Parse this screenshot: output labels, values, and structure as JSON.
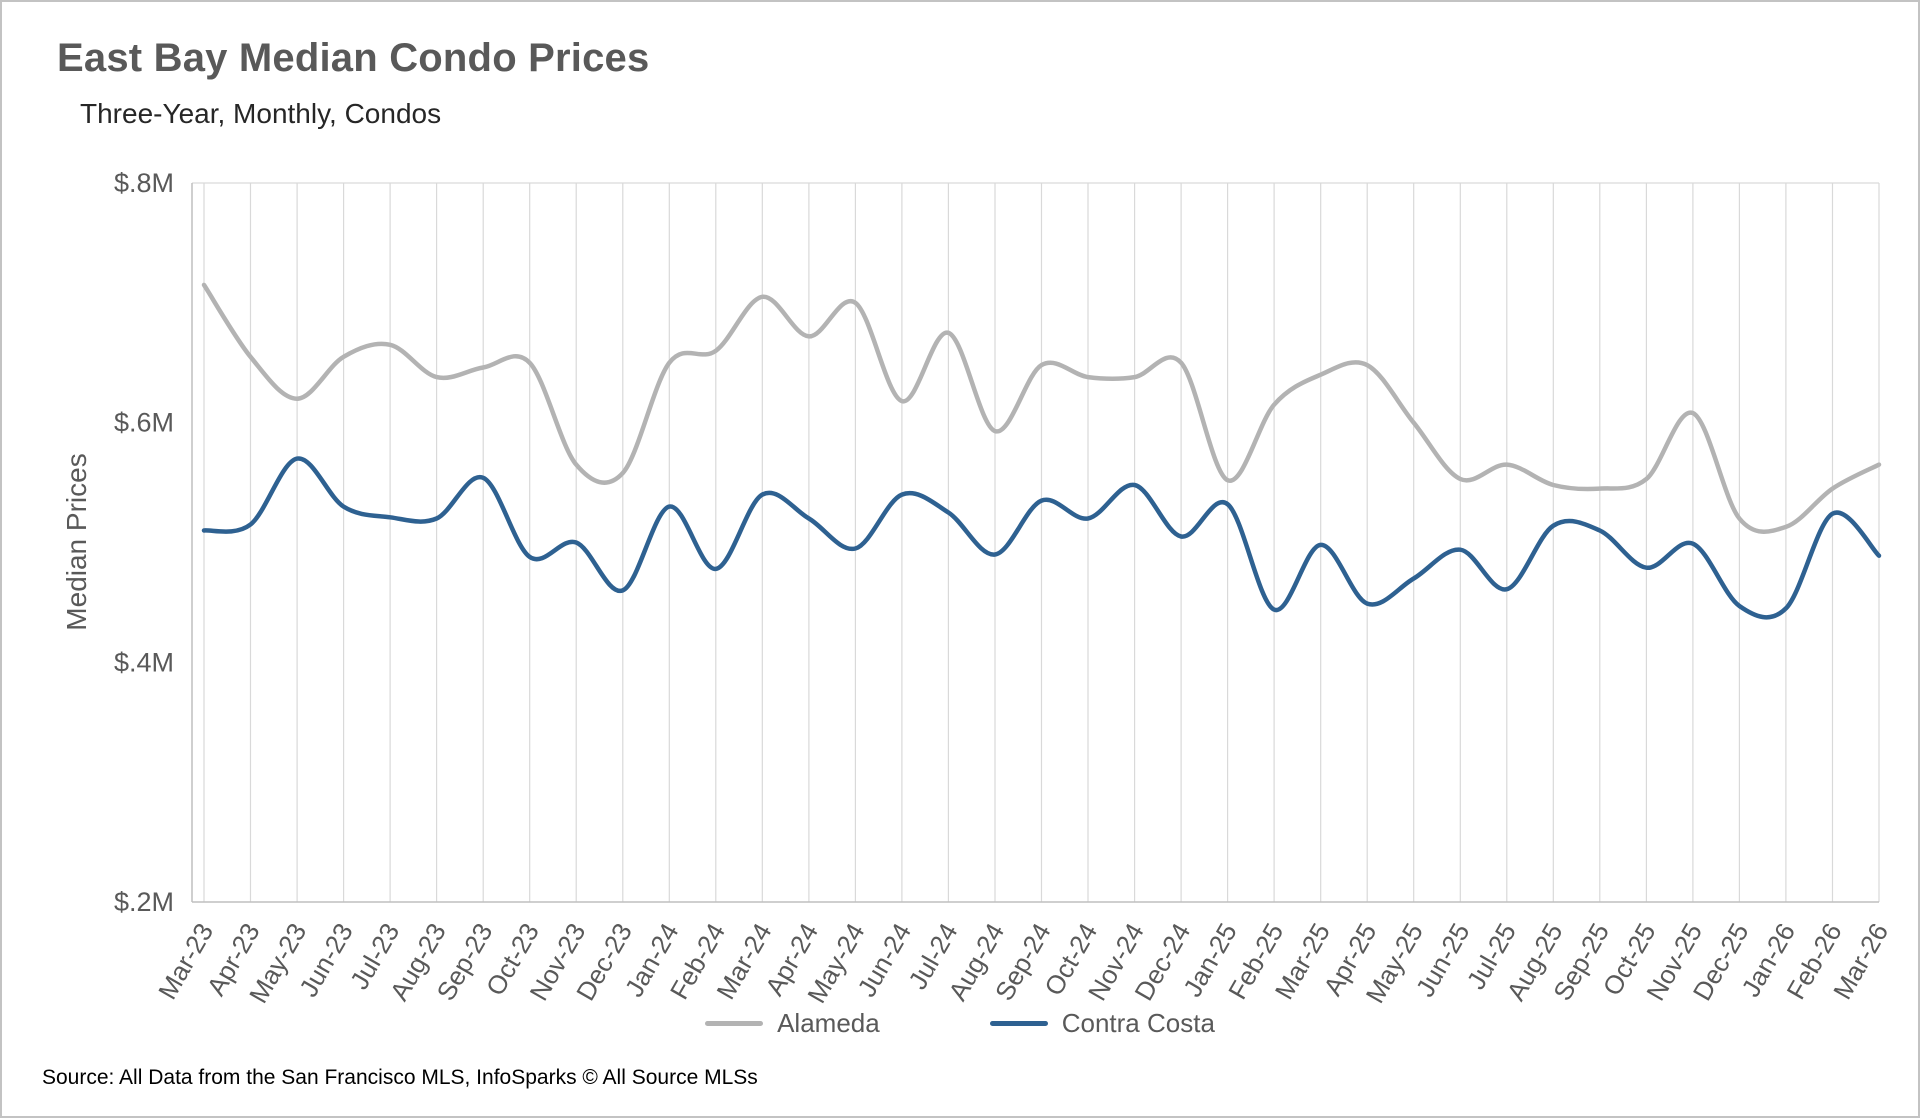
{
  "page": {
    "title": "East Bay Median Condo Prices",
    "subtitle": "Three-Year, Monthly, Condos",
    "source": "Source: All Data from the San Francisco MLS, InfoSparks © All Source MLSs"
  },
  "chart_data": {
    "type": "line",
    "title": "East Bay Median Condo Prices",
    "subtitle": "Three-Year, Monthly, Condos",
    "xlabel": "",
    "ylabel": "Median Prices",
    "unit": "millions USD",
    "ylim": [
      0.2,
      0.8
    ],
    "y_ticks": [
      0.2,
      0.4,
      0.6,
      0.8
    ],
    "y_tick_labels": [
      "$.2M",
      "$.4M",
      "$.6M",
      "$.8M"
    ],
    "grid": "vertical-monthly",
    "legend_position": "bottom",
    "line_style": "smooth",
    "categories": [
      "Mar-23",
      "Apr-23",
      "May-23",
      "Jun-23",
      "Jul-23",
      "Aug-23",
      "Sep-23",
      "Oct-23",
      "Nov-23",
      "Dec-23",
      "Jan-24",
      "Feb-24",
      "Mar-24",
      "Apr-24",
      "May-24",
      "Jun-24",
      "Jul-24",
      "Aug-24",
      "Sep-24",
      "Oct-24",
      "Nov-24",
      "Dec-24",
      "Jan-25",
      "Feb-25",
      "Mar-25",
      "Apr-25",
      "May-25",
      "Jun-25",
      "Jul-25",
      "Aug-25",
      "Sep-25",
      "Oct-25",
      "Nov-25",
      "Dec-25",
      "Jan-26",
      "Feb-26",
      "Mar-26"
    ],
    "series": [
      {
        "name": "Alameda",
        "color": "#b3b3b3",
        "values": [
          0.715,
          0.655,
          0.62,
          0.655,
          0.665,
          0.638,
          0.646,
          0.65,
          0.565,
          0.558,
          0.65,
          0.66,
          0.705,
          0.672,
          0.7,
          0.618,
          0.675,
          0.593,
          0.648,
          0.638,
          0.638,
          0.65,
          0.552,
          0.615,
          0.64,
          0.648,
          0.6,
          0.553,
          0.565,
          0.548,
          0.545,
          0.553,
          0.608,
          0.52,
          0.513,
          0.545,
          0.565
        ]
      },
      {
        "name": "Contra Costa",
        "color": "#2e6191",
        "values": [
          0.51,
          0.515,
          0.57,
          0.53,
          0.521,
          0.52,
          0.554,
          0.488,
          0.5,
          0.46,
          0.53,
          0.478,
          0.54,
          0.52,
          0.495,
          0.54,
          0.525,
          0.49,
          0.535,
          0.52,
          0.548,
          0.505,
          0.532,
          0.444,
          0.498,
          0.449,
          0.47,
          0.494,
          0.461,
          0.514,
          0.51,
          0.479,
          0.499,
          0.447,
          0.445,
          0.524,
          0.489
        ]
      }
    ]
  }
}
